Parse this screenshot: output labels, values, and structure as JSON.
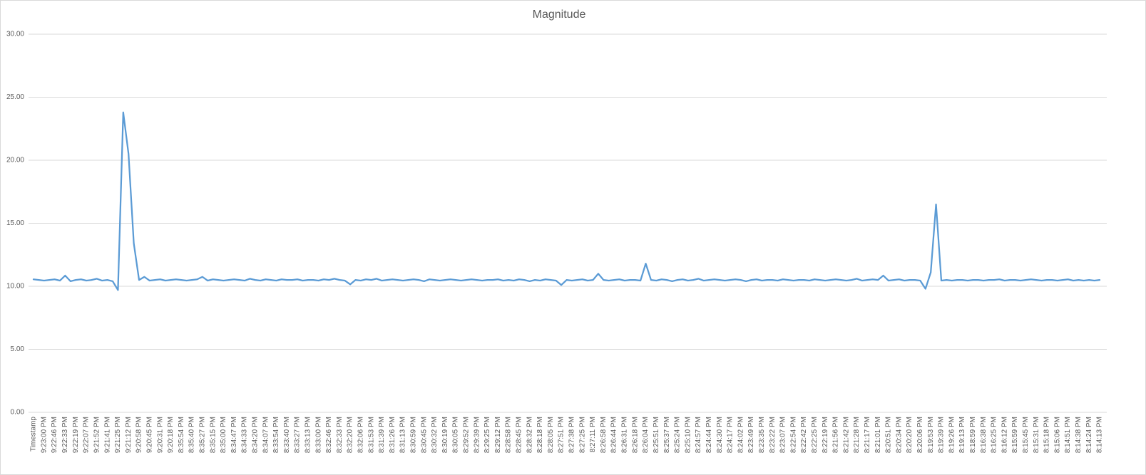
{
  "chart_data": {
    "type": "line",
    "title": "Magnitude",
    "color": "#5b9bd5",
    "grid": true,
    "ylim": [
      0,
      30
    ],
    "yticks": [
      {
        "value": 0,
        "label": "0.00"
      },
      {
        "value": 5,
        "label": "5.00"
      },
      {
        "value": 10,
        "label": "10.00"
      },
      {
        "value": 15,
        "label": "15.00"
      },
      {
        "value": 20,
        "label": "20.00"
      },
      {
        "value": 25,
        "label": "25.00"
      },
      {
        "value": 30,
        "label": "30.00"
      }
    ],
    "categories": [
      "Timestamp",
      null,
      "9:23:00 PM",
      null,
      "9:22:46 PM",
      null,
      "9:22:33 PM",
      null,
      "9:22:19 PM",
      null,
      "9:22:07 PM",
      null,
      "9:21:52 PM",
      null,
      "9:21:41 PM",
      null,
      "9:21:25 PM",
      null,
      "9:21:12 PM",
      null,
      "9:20:58 PM",
      null,
      "9:20:45 PM",
      null,
      "9:20:31 PM",
      null,
      "9:20:18 PM",
      null,
      "8:35:54 PM",
      null,
      "8:35:40 PM",
      null,
      "8:35:27 PM",
      null,
      "8:35:15 PM",
      null,
      "8:35:00 PM",
      null,
      "8:34:47 PM",
      null,
      "8:34:33 PM",
      null,
      "8:34:20 PM",
      null,
      "8:34:07 PM",
      null,
      "8:33:54 PM",
      null,
      "8:33:40 PM",
      null,
      "8:33:27 PM",
      null,
      "8:33:13 PM",
      null,
      "8:33:00 PM",
      null,
      "8:32:46 PM",
      null,
      "8:32:33 PM",
      null,
      "8:32:20 PM",
      null,
      "8:32:06 PM",
      null,
      "8:31:53 PM",
      null,
      "8:31:39 PM",
      null,
      "8:31:26 PM",
      null,
      "8:31:13 PM",
      null,
      "8:30:59 PM",
      null,
      "8:30:45 PM",
      null,
      "8:30:32 PM",
      null,
      "8:30:19 PM",
      null,
      "8:30:05 PM",
      null,
      "8:29:52 PM",
      null,
      "8:29:39 PM",
      null,
      "8:29:25 PM",
      null,
      "8:29:12 PM",
      null,
      "8:28:58 PM",
      null,
      "8:28:45 PM",
      null,
      "8:28:32 PM",
      null,
      "8:28:18 PM",
      null,
      "8:28:05 PM",
      null,
      "8:27:51 PM",
      null,
      "8:27:38 PM",
      null,
      "8:27:25 PM",
      null,
      "8:27:11 PM",
      null,
      "8:26:58 PM",
      null,
      "8:26:44 PM",
      null,
      "8:26:31 PM",
      null,
      "8:26:18 PM",
      null,
      "8:26:04 PM",
      null,
      "8:25:51 PM",
      null,
      "8:25:37 PM",
      null,
      "8:25:24 PM",
      null,
      "8:25:10 PM",
      null,
      "8:24:57 PM",
      null,
      "8:24:44 PM",
      null,
      "8:24:30 PM",
      null,
      "8:24:17 PM",
      null,
      "8:24:02 PM",
      null,
      "8:23:49 PM",
      null,
      "8:23:35 PM",
      null,
      "8:23:22 PM",
      null,
      "8:23:07 PM",
      null,
      "8:22:54 PM",
      null,
      "8:22:42 PM",
      null,
      "8:22:25 PM",
      null,
      "8:22:19 PM",
      null,
      "8:21:56 PM",
      null,
      "8:21:42 PM",
      null,
      "8:21:28 PM",
      null,
      "8:21:17 PM",
      null,
      "8:21:01 PM",
      null,
      "8:20:51 PM",
      null,
      "8:20:34 PM",
      null,
      "8:20:20 PM",
      null,
      "8:20:06 PM",
      null,
      "8:19:53 PM",
      null,
      "8:19:39 PM",
      null,
      "8:19:26 PM",
      null,
      "8:19:13 PM",
      null,
      "8:18:59 PM",
      null,
      "8:16:38 PM",
      null,
      "8:16:25 PM",
      null,
      "8:16:12 PM",
      null,
      "8:15:59 PM",
      null,
      "8:15:45 PM",
      null,
      "8:15:31 PM",
      null,
      "8:15:18 PM",
      null,
      "8:15:06 PM",
      null,
      "8:14:51 PM",
      null,
      "8:14:38 PM",
      null,
      "8:14:24 PM",
      null,
      "8:14:13 PM"
    ],
    "values": [
      10.55,
      10.5,
      10.45,
      10.5,
      10.55,
      10.45,
      10.85,
      10.4,
      10.5,
      10.55,
      10.45,
      10.5,
      10.6,
      10.45,
      10.5,
      10.4,
      9.7,
      23.8,
      20.5,
      13.4,
      10.5,
      10.75,
      10.45,
      10.5,
      10.55,
      10.45,
      10.5,
      10.55,
      10.5,
      10.45,
      10.5,
      10.55,
      10.75,
      10.45,
      10.55,
      10.5,
      10.45,
      10.5,
      10.55,
      10.5,
      10.45,
      10.6,
      10.5,
      10.45,
      10.55,
      10.5,
      10.45,
      10.55,
      10.5,
      10.5,
      10.55,
      10.45,
      10.5,
      10.5,
      10.45,
      10.55,
      10.5,
      10.6,
      10.5,
      10.45,
      10.15,
      10.5,
      10.45,
      10.55,
      10.5,
      10.6,
      10.45,
      10.5,
      10.55,
      10.5,
      10.45,
      10.5,
      10.55,
      10.5,
      10.4,
      10.55,
      10.5,
      10.45,
      10.5,
      10.55,
      10.5,
      10.45,
      10.5,
      10.55,
      10.5,
      10.45,
      10.5,
      10.5,
      10.55,
      10.45,
      10.5,
      10.45,
      10.55,
      10.5,
      10.4,
      10.5,
      10.45,
      10.55,
      10.5,
      10.45,
      10.1,
      10.5,
      10.45,
      10.5,
      10.55,
      10.45,
      10.5,
      11.0,
      10.5,
      10.45,
      10.5,
      10.55,
      10.45,
      10.5,
      10.5,
      10.45,
      11.8,
      10.5,
      10.45,
      10.55,
      10.5,
      10.4,
      10.5,
      10.55,
      10.45,
      10.5,
      10.6,
      10.45,
      10.5,
      10.55,
      10.5,
      10.45,
      10.5,
      10.55,
      10.5,
      10.4,
      10.5,
      10.55,
      10.45,
      10.5,
      10.5,
      10.45,
      10.55,
      10.5,
      10.45,
      10.5,
      10.5,
      10.45,
      10.55,
      10.5,
      10.45,
      10.5,
      10.55,
      10.5,
      10.45,
      10.5,
      10.6,
      10.45,
      10.5,
      10.55,
      10.5,
      10.85,
      10.45,
      10.5,
      10.55,
      10.45,
      10.5,
      10.5,
      10.45,
      9.8,
      11.1,
      16.5,
      10.45,
      10.5,
      10.45,
      10.5,
      10.5,
      10.45,
      10.5,
      10.5,
      10.45,
      10.5,
      10.5,
      10.55,
      10.45,
      10.5,
      10.5,
      10.45,
      10.5,
      10.55,
      10.5,
      10.45,
      10.5,
      10.5,
      10.45,
      10.5,
      10.55,
      10.45,
      10.5,
      10.45,
      10.5,
      10.45,
      10.5
    ]
  }
}
